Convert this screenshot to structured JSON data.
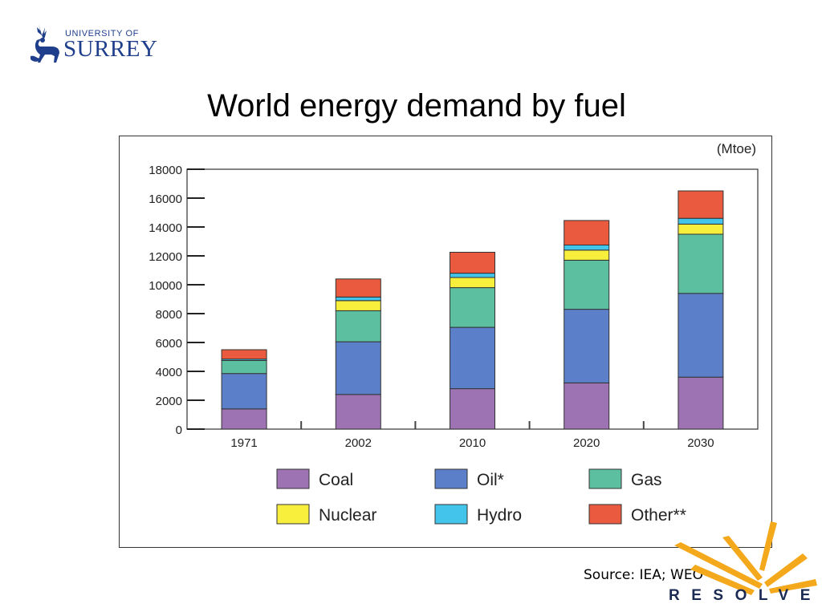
{
  "logo": {
    "line1": "UNIVERSITY OF",
    "line2": "SURREY",
    "icon": "stag-icon"
  },
  "slide_title": "World energy demand by fuel",
  "source": "Source: IEA; WEO",
  "resolve": {
    "word": "RESOLVE",
    "icon": "sunburst-icon"
  },
  "chart_data": {
    "type": "bar",
    "stacked": true,
    "unit_label": "(Mtoe)",
    "title": "",
    "xlabel": "",
    "ylabel": "",
    "categories": [
      "1971",
      "2002",
      "2010",
      "2020",
      "2030"
    ],
    "ylim": [
      0,
      18000
    ],
    "yticks": [
      0,
      2000,
      4000,
      6000,
      8000,
      10000,
      12000,
      14000,
      16000,
      18000
    ],
    "grid": false,
    "legend_position": "bottom",
    "series": [
      {
        "name": "Coal",
        "color": "#9e73b4",
        "values": [
          1400,
          2400,
          2800,
          3200,
          3600
        ]
      },
      {
        "name": "Oil*",
        "color": "#5b80c9",
        "values": [
          2450,
          3650,
          4250,
          5100,
          5800
        ]
      },
      {
        "name": "Gas",
        "color": "#5cbfa0",
        "values": [
          900,
          2150,
          2750,
          3400,
          4100
        ]
      },
      {
        "name": "Nuclear",
        "color": "#f8ee3c",
        "values": [
          0,
          700,
          700,
          700,
          700
        ]
      },
      {
        "name": "Hydro",
        "color": "#43c4ea",
        "values": [
          100,
          250,
          300,
          350,
          400
        ]
      },
      {
        "name": "Other**",
        "color": "#ea5a3e",
        "values": [
          650,
          1250,
          1450,
          1700,
          1900
        ]
      }
    ]
  }
}
